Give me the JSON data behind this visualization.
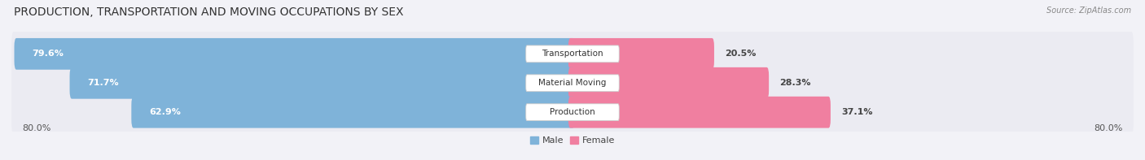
{
  "title": "PRODUCTION, TRANSPORTATION AND MOVING OCCUPATIONS BY SEX",
  "source": "Source: ZipAtlas.com",
  "categories": [
    "Transportation",
    "Material Moving",
    "Production"
  ],
  "male_values": [
    79.6,
    71.7,
    62.9
  ],
  "female_values": [
    20.5,
    28.3,
    37.1
  ],
  "male_color": "#7fb3d9",
  "female_color": "#f07fa0",
  "male_color_light": "#b8d4ec",
  "female_color_light": "#f9b8cb",
  "bg_color": "#f2f2f7",
  "bar_bg_color": "#e4e4ec",
  "row_bg_color": "#ebebf2",
  "axis_min": -80.0,
  "axis_max": 80.0,
  "axis_label_left": "80.0%",
  "axis_label_right": "80.0%",
  "title_fontsize": 10,
  "label_fontsize": 8,
  "tick_fontsize": 8,
  "source_fontsize": 7
}
